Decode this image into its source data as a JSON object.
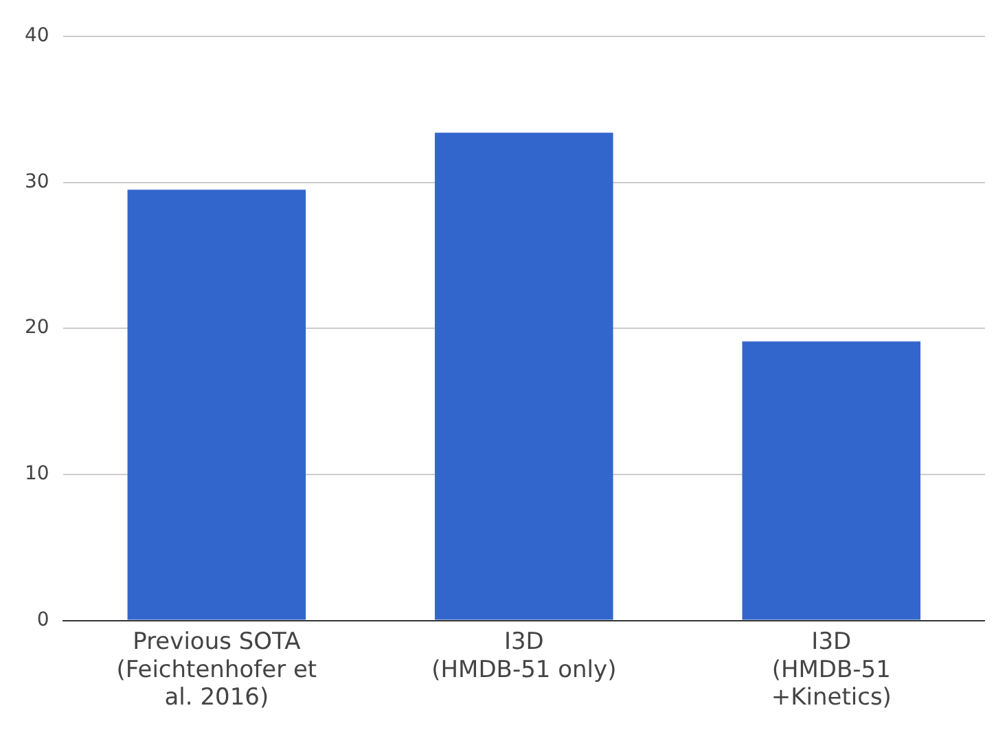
{
  "chart_data": {
    "type": "bar",
    "categories": [
      "Previous SOTA\n(Feichtenhofer et\nal. 2016)",
      "I3D\n(HMDB-51 only)",
      "I3D\n(HMDB-51\n+Kinetics)"
    ],
    "values": [
      29.5,
      33.4,
      19.1
    ],
    "color": "#3366cc",
    "ylim": [
      0,
      40
    ],
    "yticks": [
      0,
      10,
      20,
      30,
      40
    ],
    "grid": "y",
    "legend": false
  }
}
